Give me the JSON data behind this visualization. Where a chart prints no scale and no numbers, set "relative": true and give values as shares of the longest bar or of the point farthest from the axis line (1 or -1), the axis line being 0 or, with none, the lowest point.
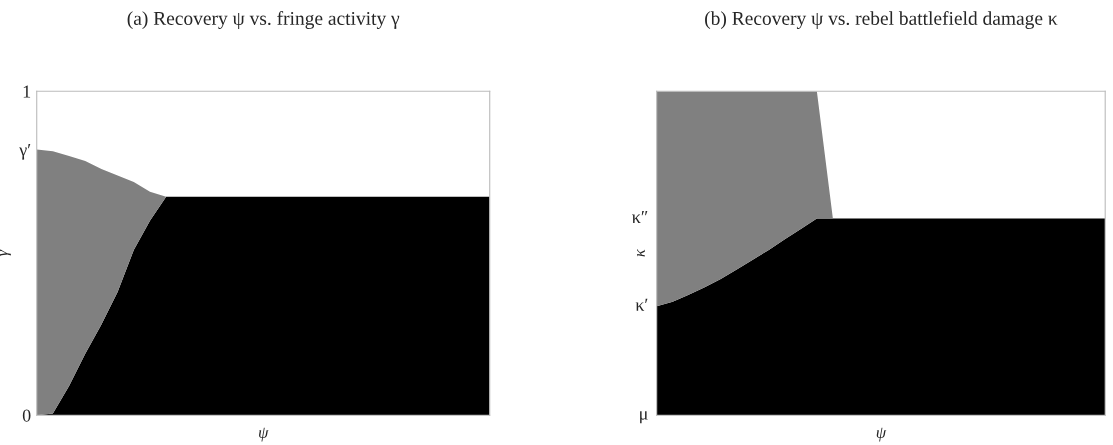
{
  "chart_data": [
    {
      "type": "area",
      "title": "(a) Recovery ψ vs. fringe activity γ",
      "xlabel": "ψ",
      "ylabel": "γ",
      "stacked": true,
      "legend": false,
      "grid": false,
      "categories": [
        null,
        null,
        null,
        null,
        null,
        null,
        null,
        null,
        null,
        null,
        null,
        null,
        null,
        null,
        null,
        null,
        null,
        null,
        null,
        null,
        null,
        null,
        null,
        null,
        null,
        null,
        null,
        null,
        null
      ],
      "ylim": [
        0,
        1
      ],
      "yticks": [
        0,
        {
          "value": 0.82,
          "label": "γ′"
        },
        1
      ],
      "series": [
        {
          "color": "#000000",
          "values": [
            0,
            0.005,
            0.09,
            0.19,
            0.28,
            0.38,
            0.51,
            0.6,
            0.674,
            0.674,
            0.674,
            0.674,
            0.674,
            0.674,
            0.674,
            0.674,
            0.674,
            0.674,
            0.674,
            0.674,
            0.674,
            0.674,
            0.674,
            0.674,
            0.674,
            0.674,
            0.674,
            0.674,
            0.674
          ]
        },
        {
          "color": "#808080",
          "values": [
            0.82,
            0.81,
            0.71,
            0.595,
            0.48,
            0.36,
            0.21,
            0.09,
            0,
            0,
            0,
            0,
            0,
            0,
            0,
            0,
            0,
            0,
            0,
            0,
            0,
            0,
            0,
            0,
            0,
            0,
            0,
            0,
            0
          ]
        }
      ]
    },
    {
      "type": "area",
      "title": "(b) Recovery ψ vs. rebel battlefield damage κ",
      "xlabel": "ψ",
      "ylabel": "κ",
      "stacked": true,
      "relative": true,
      "legend": false,
      "grid": false,
      "categories": [
        null,
        null,
        null,
        null,
        null,
        null,
        null,
        null,
        null,
        null,
        null,
        null,
        null,
        null,
        null,
        null,
        null,
        null,
        null,
        null,
        null,
        null,
        null,
        null,
        null,
        null,
        null,
        null,
        null
      ],
      "annotations": [
        "μ",
        "κ′",
        "κ″"
      ],
      "series": [
        {
          "color": "#000000",
          "values": [
            0.336,
            0.35,
            0.372,
            0.395,
            0.42,
            0.45,
            0.48,
            0.51,
            0.543,
            0.575,
            0.607,
            0.607,
            0.607,
            0.607,
            0.607,
            0.607,
            0.607,
            0.607,
            0.607,
            0.607,
            0.607,
            0.607,
            0.607,
            0.607,
            0.607,
            0.607,
            0.607,
            0.607,
            0.607
          ]
        },
        {
          "color": "#808080",
          "values": [
            0.664,
            0.65,
            0.628,
            0.605,
            0.58,
            0.55,
            0.52,
            0.49,
            0.457,
            0.425,
            0.393,
            0,
            0,
            0,
            0,
            0,
            0,
            0,
            0,
            0,
            0,
            0,
            0,
            0,
            0,
            0,
            0,
            0,
            0
          ]
        }
      ]
    }
  ]
}
